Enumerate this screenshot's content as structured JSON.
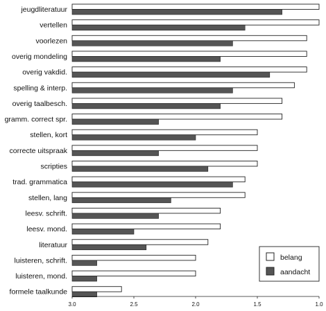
{
  "chart_data": {
    "type": "bar",
    "orientation": "horizontal",
    "categories": [
      "jeugdliteratuur",
      "vertellen",
      "voorlezen",
      "overig mondeling",
      "overig vakdid.",
      "spelling & interp.",
      "overig taalbesch.",
      "gramm. correct spr.",
      "stellen, kort",
      "correcte uitspraak",
      "scripties",
      "trad. grammatica",
      "stellen, lang",
      "leesv. schrift.",
      "leesv. mond.",
      "literatuur",
      "luisteren, schrift.",
      "luisteren, mond.",
      "formele taalkunde"
    ],
    "series": [
      {
        "name": "belang",
        "values": [
          1.0,
          1.0,
          1.1,
          1.1,
          1.1,
          1.2,
          1.3,
          1.3,
          1.5,
          1.5,
          1.5,
          1.6,
          1.6,
          1.8,
          1.8,
          1.9,
          2.0,
          2.0,
          2.6
        ],
        "fill": "#ffffff"
      },
      {
        "name": "aandacht",
        "values": [
          1.3,
          1.6,
          1.7,
          1.8,
          1.4,
          1.7,
          1.8,
          2.3,
          2.0,
          2.3,
          1.9,
          1.7,
          2.2,
          2.3,
          2.5,
          2.4,
          2.8,
          2.8,
          2.8
        ],
        "fill": "#555555"
      }
    ],
    "x_ticks": [
      "3.0",
      "2.5",
      "2.0",
      "1.5",
      "1.0"
    ],
    "xlim": [
      3.0,
      1.0
    ],
    "legend": {
      "placement": "bottom-right",
      "items": [
        "belang",
        "aandacht"
      ]
    },
    "title": "",
    "xlabel": "",
    "ylabel": ""
  }
}
